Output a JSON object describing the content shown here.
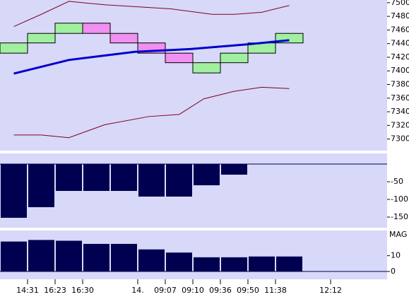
{
  "chart_data": [
    {
      "type": "renko",
      "x": [
        0,
        1,
        2,
        3,
        4,
        5,
        6,
        7,
        8,
        9,
        10
      ],
      "open": [
        7426,
        7441,
        7455,
        7470,
        7455,
        7441,
        7426,
        7397,
        7412,
        7426,
        7441
      ],
      "close": [
        7441,
        7455,
        7470,
        7455,
        7441,
        7426,
        7412,
        7412,
        7426,
        7441,
        7455
      ],
      "up_color": "#a0f0a0",
      "down_color": "#f090f0",
      "lines": [
        {
          "color": "#0000cc",
          "x": [
            0.5,
            2.5,
            4.9,
            6.9,
            9,
            10.5
          ],
          "values": [
            7396,
            7416,
            7428,
            7432,
            7439,
            7445
          ]
        },
        {
          "color": "#800020",
          "x": [
            0.5,
            1.5,
            2.5,
            3.8,
            6.2,
            7.7,
            8.5,
            9.5,
            10.5
          ],
          "values": [
            7465,
            7483,
            7502,
            7497,
            7491,
            7483,
            7483,
            7486,
            7496
          ]
        },
        {
          "color": "#800020",
          "x": [
            0.5,
            1.5,
            2.5,
            3.8,
            5.4,
            6.5,
            7.4,
            8.5,
            9.5,
            10.5
          ],
          "values": [
            7306,
            7306,
            7302,
            7321,
            7333,
            7336,
            7359,
            7370,
            7376,
            7374
          ]
        }
      ],
      "ylim": [
        7283,
        7504
      ],
      "yticks": [
        7300,
        7320,
        7340,
        7360,
        7380,
        7400,
        7420,
        7440,
        7460,
        7480,
        7500
      ]
    },
    {
      "type": "bar",
      "x": [
        0,
        1,
        2,
        3,
        4,
        5,
        6,
        7,
        8
      ],
      "values": [
        -152,
        -122,
        -76,
        -76,
        -76,
        -92,
        -92,
        -60,
        -30
      ],
      "color": "#000050",
      "ylim": [
        -180,
        30
      ],
      "yticks": [
        -150,
        -100,
        -50
      ]
    },
    {
      "type": "bar",
      "title": "MAG",
      "x": [
        0,
        1,
        2,
        3,
        4,
        5,
        6,
        7,
        8,
        9,
        10
      ],
      "values": [
        19,
        20,
        19.5,
        17.5,
        17.5,
        14,
        12,
        9,
        9,
        9.5,
        9.5
      ],
      "color": "#000050",
      "ylim": [
        -5,
        26
      ],
      "yticks": [
        0,
        10
      ],
      "xticks": [
        1,
        2,
        3,
        5,
        6,
        7,
        8,
        9,
        10,
        12
      ],
      "categories": [
        "14:31",
        "16:23",
        "16:30",
        "14.",
        "09:07",
        "09:10",
        "09:36",
        "09:50",
        "11:38",
        "12:12"
      ]
    }
  ]
}
